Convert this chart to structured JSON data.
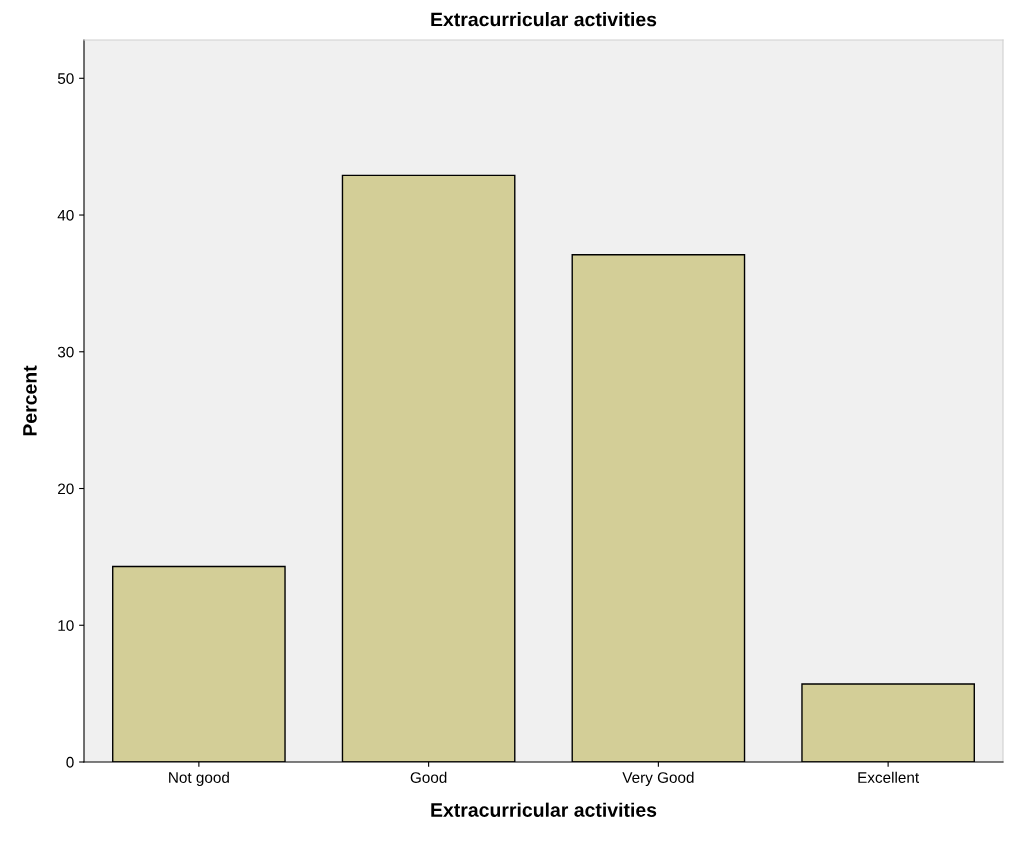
{
  "chart_data": {
    "type": "bar",
    "title": "Extracurricular activities",
    "xlabel": "Extracurricular activities",
    "ylabel": "Percent",
    "categories": [
      "Not good",
      "Good",
      "Very Good",
      "Excellent"
    ],
    "values": [
      14.3,
      42.9,
      37.1,
      5.7
    ],
    "color": "#d3ce97",
    "ylim": [
      0,
      52.8
    ],
    "yticks": [
      0,
      10,
      20,
      30,
      40,
      50
    ],
    "grid": false,
    "legend": false
  }
}
